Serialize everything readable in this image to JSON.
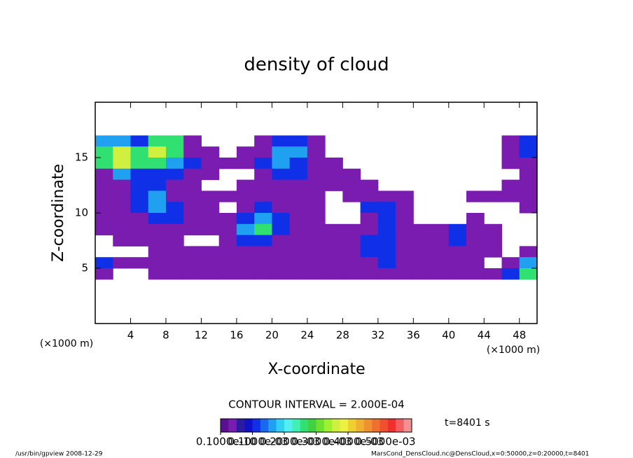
{
  "chart_data": {
    "type": "contourf",
    "title": "density of cloud",
    "x_label": "X-coordinate",
    "y_label": "Z-coordinate",
    "x_unit": "(×1000 m)",
    "y_unit": "(×1000 m)",
    "contour_interval": "CONTOUR INTERVAL = 2.000E-04",
    "time_label": "t=8401 s",
    "footer_left": "/usr/bin/gpview  2008-12-29",
    "footer_right": "MarsCond_DensCloud.nc@DensCloud,x=0:50000,z=0:20000,t=8401",
    "xlim": [
      0,
      50
    ],
    "ylim": [
      0,
      20
    ],
    "xticks": [
      4,
      8,
      12,
      16,
      20,
      24,
      28,
      32,
      36,
      40,
      44,
      48
    ],
    "yticks": [
      5,
      10,
      15
    ],
    "x": [
      1,
      3,
      5,
      7,
      9,
      11,
      13,
      15,
      17,
      19,
      21,
      23,
      25,
      27,
      29,
      31,
      33,
      35,
      37,
      39,
      41,
      43,
      45,
      47,
      49
    ],
    "z": [
      16.5,
      15.5,
      14.5,
      13.5,
      12.5,
      11.5,
      10.5,
      9.5,
      8.5,
      7.5,
      6.5,
      5.5,
      4.5
    ],
    "values": [
      [
        0.00015,
        0.00015,
        0.0001,
        0.00025,
        0.00025,
        3e-05,
        null,
        null,
        null,
        3e-05,
        0.0001,
        0.0001,
        3e-05,
        null,
        null,
        null,
        null,
        null,
        null,
        null,
        null,
        null,
        null,
        3e-05,
        0.0001
      ],
      [
        0.00025,
        0.00035,
        0.00025,
        0.00035,
        0.00025,
        3e-05,
        3e-05,
        null,
        3e-05,
        3e-05,
        0.00015,
        0.00015,
        3e-05,
        null,
        null,
        null,
        null,
        null,
        null,
        null,
        null,
        null,
        null,
        3e-05,
        0.0001
      ],
      [
        0.00025,
        0.00035,
        0.00025,
        0.00025,
        0.00015,
        0.0001,
        3e-05,
        3e-05,
        3e-05,
        0.0001,
        0.00015,
        0.0001,
        3e-05,
        3e-05,
        null,
        null,
        null,
        null,
        null,
        null,
        null,
        null,
        null,
        3e-05,
        3e-05
      ],
      [
        3e-05,
        0.00015,
        0.0001,
        0.0001,
        0.0001,
        3e-05,
        3e-05,
        null,
        null,
        3e-05,
        0.0001,
        0.0001,
        3e-05,
        3e-05,
        3e-05,
        null,
        null,
        null,
        null,
        null,
        null,
        null,
        null,
        null,
        3e-05
      ],
      [
        3e-05,
        3e-05,
        0.0001,
        0.0001,
        3e-05,
        3e-05,
        null,
        null,
        3e-05,
        3e-05,
        3e-05,
        3e-05,
        3e-05,
        3e-05,
        3e-05,
        3e-05,
        null,
        null,
        null,
        null,
        null,
        null,
        null,
        3e-05,
        3e-05
      ],
      [
        3e-05,
        3e-05,
        0.0001,
        0.00015,
        3e-05,
        3e-05,
        3e-05,
        3e-05,
        3e-05,
        3e-05,
        3e-05,
        3e-05,
        3e-05,
        null,
        3e-05,
        3e-05,
        3e-05,
        3e-05,
        null,
        null,
        null,
        3e-05,
        3e-05,
        3e-05,
        3e-05
      ],
      [
        3e-05,
        3e-05,
        0.0001,
        0.00015,
        0.0001,
        3e-05,
        3e-05,
        null,
        3e-05,
        0.0001,
        3e-05,
        3e-05,
        3e-05,
        null,
        null,
        0.0001,
        0.0001,
        3e-05,
        null,
        null,
        null,
        null,
        null,
        null,
        3e-05
      ],
      [
        3e-05,
        3e-05,
        3e-05,
        0.0001,
        0.0001,
        3e-05,
        3e-05,
        3e-05,
        0.0001,
        0.00015,
        0.0001,
        3e-05,
        3e-05,
        null,
        null,
        3e-05,
        0.0001,
        3e-05,
        null,
        null,
        null,
        3e-05,
        null,
        null,
        null
      ],
      [
        3e-05,
        3e-05,
        3e-05,
        3e-05,
        3e-05,
        3e-05,
        3e-05,
        3e-05,
        0.00015,
        0.00025,
        0.0001,
        3e-05,
        3e-05,
        3e-05,
        3e-05,
        3e-05,
        0.0001,
        3e-05,
        3e-05,
        3e-05,
        0.0001,
        3e-05,
        3e-05,
        null,
        null
      ],
      [
        null,
        3e-05,
        3e-05,
        3e-05,
        3e-05,
        null,
        null,
        3e-05,
        0.0001,
        0.0001,
        3e-05,
        3e-05,
        3e-05,
        3e-05,
        3e-05,
        0.0001,
        0.0001,
        3e-05,
        3e-05,
        3e-05,
        0.0001,
        3e-05,
        3e-05,
        null,
        null
      ],
      [
        null,
        null,
        null,
        3e-05,
        3e-05,
        3e-05,
        3e-05,
        3e-05,
        3e-05,
        3e-05,
        3e-05,
        3e-05,
        3e-05,
        3e-05,
        3e-05,
        0.0001,
        0.0001,
        3e-05,
        3e-05,
        3e-05,
        3e-05,
        3e-05,
        3e-05,
        null,
        3e-05
      ],
      [
        0.0001,
        3e-05,
        3e-05,
        3e-05,
        3e-05,
        3e-05,
        3e-05,
        3e-05,
        3e-05,
        3e-05,
        3e-05,
        3e-05,
        3e-05,
        3e-05,
        3e-05,
        3e-05,
        0.0001,
        3e-05,
        3e-05,
        3e-05,
        3e-05,
        3e-05,
        null,
        3e-05,
        0.00015
      ],
      [
        3e-05,
        null,
        null,
        3e-05,
        3e-05,
        3e-05,
        3e-05,
        3e-05,
        3e-05,
        3e-05,
        3e-05,
        3e-05,
        3e-05,
        3e-05,
        3e-05,
        3e-05,
        3e-05,
        3e-05,
        3e-05,
        3e-05,
        3e-05,
        3e-05,
        3e-05,
        0.0001,
        0.00025
      ]
    ],
    "colorbar_lim": [
      0,
      0.0006
    ],
    "colorbar_ticks": [
      {
        "value": 1e-11,
        "label": "0.1000e-10"
      },
      {
        "value": 0.0001,
        "label": "0.1000e-03"
      },
      {
        "value": 0.0002,
        "label": "0.2000e-03"
      },
      {
        "value": 0.0003,
        "label": "0.3000e-03"
      },
      {
        "value": 0.0004,
        "label": "0.4000e-03"
      },
      {
        "value": 0.0005,
        "label": "0.5000e-03"
      }
    ],
    "colors": [
      "#5a1090",
      "#7a1cb0",
      "#2a1ca0",
      "#1010c8",
      "#1030e8",
      "#1868f0",
      "#20a0f0",
      "#30d0f0",
      "#50f0f0",
      "#40f0b0",
      "#30e070",
      "#40d040",
      "#70e030",
      "#a0f030",
      "#d0f040",
      "#f0f040",
      "#f0d030",
      "#f0b030",
      "#f09030",
      "#f07030",
      "#f05030",
      "#f03030",
      "#f06060",
      "#f09090"
    ]
  }
}
